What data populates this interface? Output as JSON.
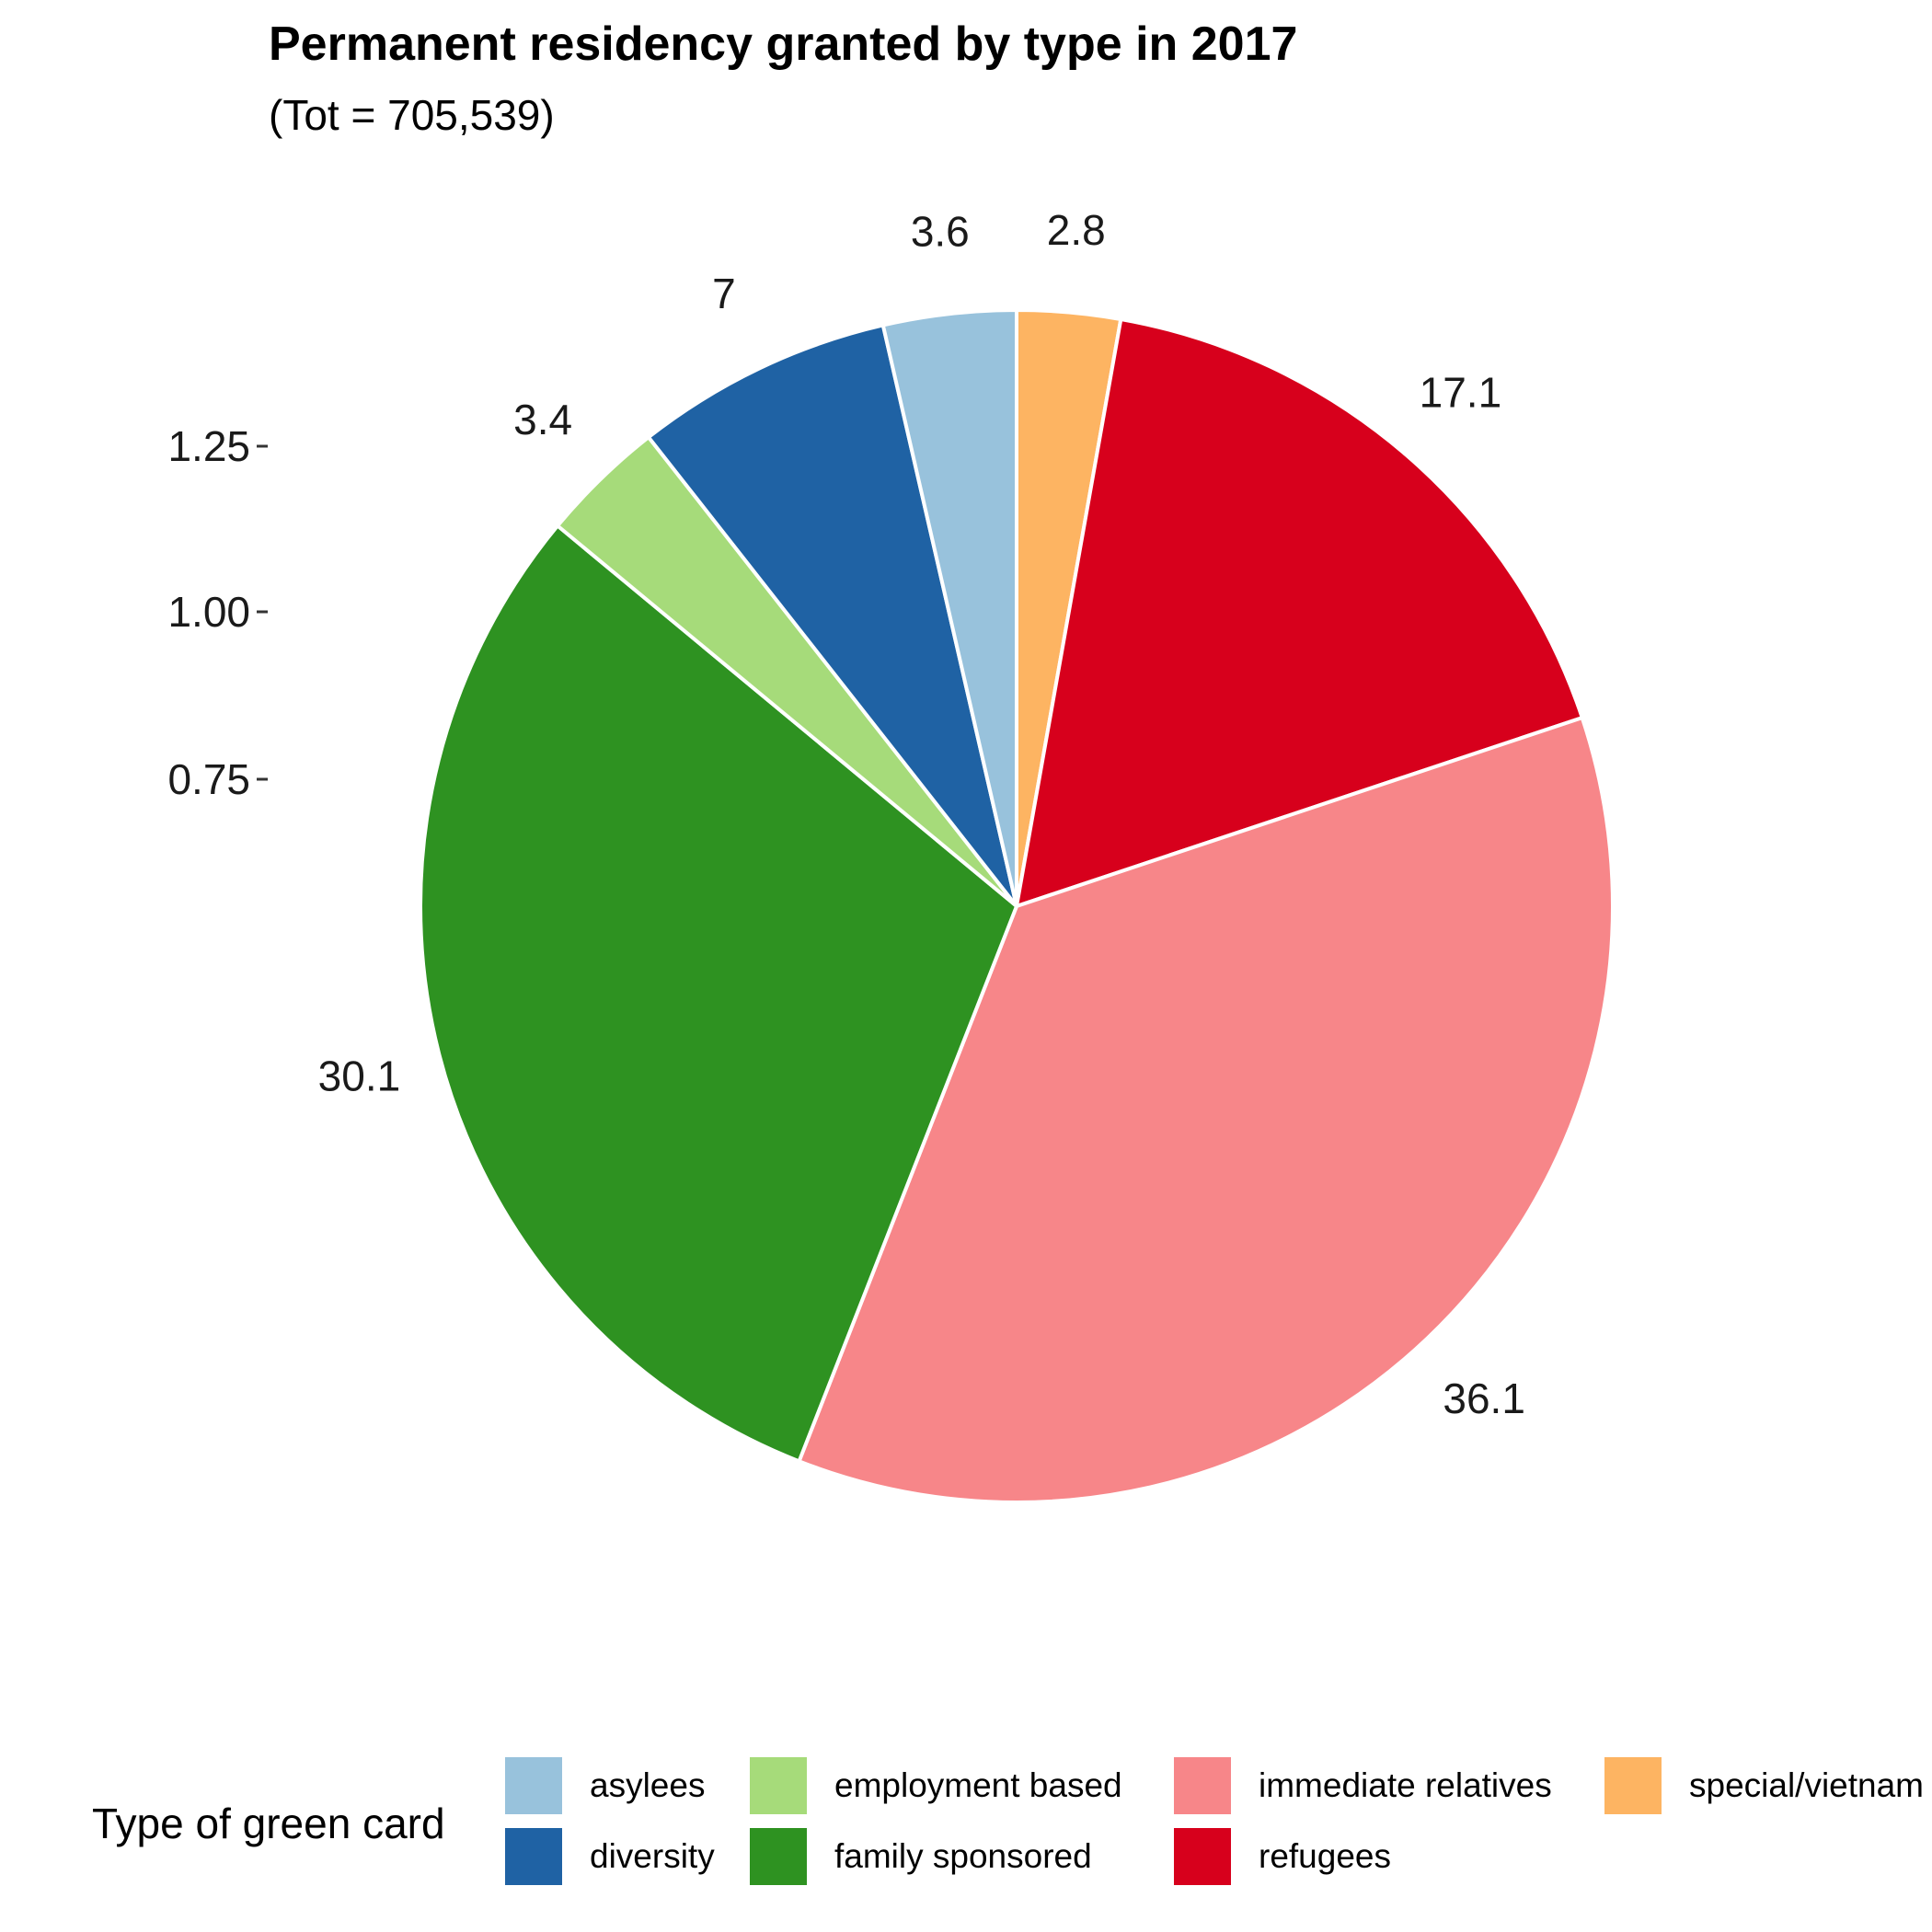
{
  "chart_data": {
    "type": "pie",
    "title": "Permanent residency granted by type in 2017",
    "subtitle": "(Tot = 705,539)",
    "y_ticks": [
      "0.75",
      "1.00",
      "1.25"
    ],
    "slices": [
      {
        "name": "special/vietnam",
        "value": 2.8,
        "label": "2.8",
        "color": "#FDB462"
      },
      {
        "name": "refugees",
        "value": 17.1,
        "label": "17.1",
        "color": "#D7001C"
      },
      {
        "name": "immediate relatives",
        "value": 36.1,
        "label": "36.1",
        "color": "#F78689"
      },
      {
        "name": "family sponsored",
        "value": 30.1,
        "label": "30.1",
        "color": "#2E9221"
      },
      {
        "name": "employment based",
        "value": 3.4,
        "label": "3.4",
        "color": "#A6DB7A"
      },
      {
        "name": "diversity",
        "value": 7,
        "label": "7",
        "color": "#1F62A4"
      },
      {
        "name": "asylees",
        "value": 3.6,
        "label": "3.6",
        "color": "#98C2DC"
      }
    ],
    "legend": {
      "title": "Type of green card",
      "position": "bottom",
      "items": [
        "asylees",
        "diversity",
        "employment based",
        "family sponsored",
        "immediate relatives",
        "refugees",
        "special/vietnam"
      ]
    }
  }
}
